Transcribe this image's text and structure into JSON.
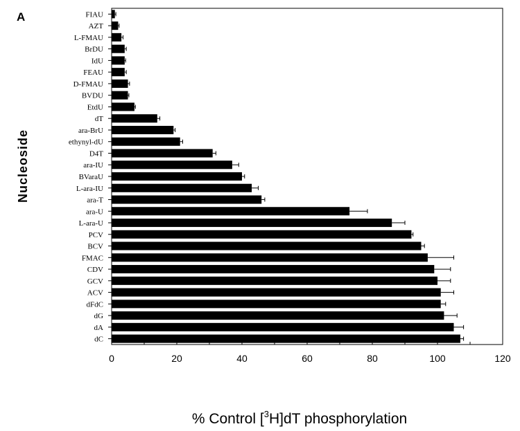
{
  "chart_data": {
    "type": "bar",
    "orientation": "horizontal",
    "panel_label": "A",
    "ylabel": "Nucleoside",
    "xlabel_parts": [
      "% Control  [",
      "3",
      "H]dT  phosphorylation"
    ],
    "xlim": [
      0,
      120
    ],
    "xticks": [
      0,
      20,
      40,
      60,
      80,
      100,
      120
    ],
    "categories": [
      "FIAU",
      "AZT",
      "L-FMAU",
      "BrDU",
      "IdU",
      "FEAU",
      "D-FMAU",
      "BVDU",
      "EtdU",
      "dT",
      "ara-BrU",
      "ethynyl-dU",
      "D4T",
      "ara-IU",
      "BVaraU",
      "L-ara-IU",
      "ara-T",
      "ara-U",
      "L-ara-U",
      "PCV",
      "BCV",
      "FMAC",
      "CDV",
      "GCV",
      "ACV",
      "dFdC",
      "dG",
      "dA",
      "dC"
    ],
    "values": [
      1,
      2,
      3,
      4,
      4,
      4,
      5,
      5,
      7,
      14,
      19,
      21,
      31,
      37,
      40,
      43,
      46,
      73,
      86,
      92,
      95,
      97,
      99,
      100,
      101,
      101,
      102,
      105,
      107
    ],
    "errors": [
      0.3,
      0.3,
      0.5,
      0.5,
      0.3,
      0.5,
      0.5,
      0.3,
      0.3,
      0.8,
      0.5,
      0.8,
      1,
      2,
      0.8,
      2,
      1,
      5.5,
      4,
      0.5,
      1,
      8,
      5,
      4,
      4,
      1.5,
      4,
      3,
      1
    ],
    "grid": false,
    "bar_color": "#000000"
  }
}
